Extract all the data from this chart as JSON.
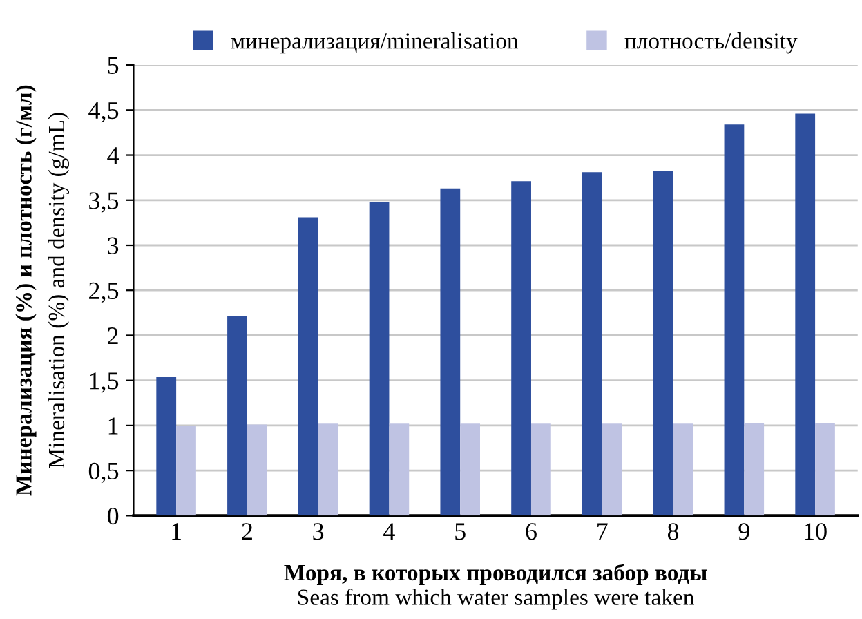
{
  "chart_data": {
    "type": "bar",
    "categories": [
      "1",
      "2",
      "3",
      "4",
      "5",
      "6",
      "7",
      "8",
      "9",
      "10"
    ],
    "series": [
      {
        "name": "минерализация/mineralisation",
        "color": "#2e4f9e",
        "values": [
          1.54,
          2.21,
          3.31,
          3.48,
          3.63,
          3.71,
          3.81,
          3.82,
          4.34,
          4.46
        ]
      },
      {
        "name": "плотность/density",
        "color": "#bfc3e3",
        "values": [
          1.0,
          1.01,
          1.02,
          1.02,
          1.02,
          1.02,
          1.02,
          1.02,
          1.03,
          1.03
        ]
      }
    ],
    "xlabel": "Моря, в которых проводился забор воды\nSeas from which water samples were taken",
    "ylabel": "Минерализация (%) и плотность (г/мл)\nMineralisation (%) and density (g/mL)",
    "ylim": [
      0,
      5
    ],
    "yticks": [
      0,
      {
        "value": 0.5,
        "label": "0,5"
      },
      1,
      {
        "value": 1.5,
        "label": "1,5"
      },
      2,
      {
        "value": 2.5,
        "label": "2,5"
      },
      3,
      {
        "value": 3.5,
        "label": "3,5"
      },
      4,
      {
        "value": 4.5,
        "label": "4,5"
      },
      5
    ],
    "grid": "y",
    "legend": "top"
  }
}
